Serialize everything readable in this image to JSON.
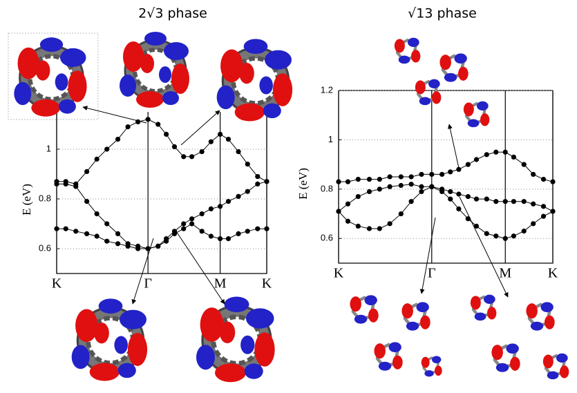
{
  "chart_data": [
    {
      "type": "line",
      "title": "2√3 phase",
      "ylabel": "E (eV)",
      "grid": true,
      "markers": true,
      "x": [
        0,
        0.1,
        0.21,
        0.33,
        0.44,
        0.55,
        0.67,
        0.78,
        0.89,
        1,
        1.11,
        1.2,
        1.29,
        1.39,
        1.48,
        1.59,
        1.69,
        1.79,
        1.88,
        1.99,
        2.09,
        2.2,
        2.3
      ],
      "xlim": [
        0,
        2.3
      ],
      "xticks": [
        {
          "value": 0,
          "label": "K"
        },
        {
          "value": 1,
          "label": "Γ"
        },
        {
          "value": 1.79,
          "label": "M"
        },
        {
          "value": 2.3,
          "label": "K"
        }
      ],
      "ylim": [
        0.5,
        1.15
      ],
      "yticks": [
        0.6,
        0.8,
        1
      ],
      "series": [
        {
          "color": "#000000",
          "values": [
            0.87,
            0.87,
            0.86,
            0.91,
            0.96,
            1.0,
            1.04,
            1.09,
            1.11,
            1.12,
            1.1,
            1.06,
            1.01,
            0.97,
            0.97,
            0.99,
            1.03,
            1.06,
            1.04,
            0.99,
            0.94,
            0.89,
            0.87
          ]
        },
        {
          "color": "#000000",
          "values": [
            0.86,
            0.86,
            0.85,
            0.79,
            0.74,
            0.7,
            0.66,
            0.62,
            0.61,
            0.6,
            0.61,
            0.64,
            0.67,
            0.7,
            0.72,
            0.74,
            0.76,
            0.77,
            0.79,
            0.81,
            0.83,
            0.86,
            0.87
          ]
        },
        {
          "color": "#000000",
          "values": [
            0.68,
            0.68,
            0.67,
            0.66,
            0.65,
            0.63,
            0.62,
            0.61,
            0.6,
            0.6,
            0.61,
            0.63,
            0.66,
            0.68,
            0.7,
            0.67,
            0.65,
            0.64,
            0.64,
            0.66,
            0.67,
            0.68,
            0.68
          ]
        }
      ]
    },
    {
      "type": "line",
      "title": "√13 phase",
      "ylabel": "E (eV)",
      "grid": true,
      "markers": true,
      "x": [
        0,
        0.1,
        0.21,
        0.33,
        0.44,
        0.55,
        0.67,
        0.78,
        0.89,
        1,
        1.11,
        1.2,
        1.29,
        1.39,
        1.48,
        1.59,
        1.69,
        1.79,
        1.88,
        1.99,
        2.09,
        2.2,
        2.3
      ],
      "xlim": [
        0,
        2.3
      ],
      "xticks": [
        {
          "value": 0,
          "label": "K"
        },
        {
          "value": 1,
          "label": "Γ"
        },
        {
          "value": 1.79,
          "label": "M"
        },
        {
          "value": 2.3,
          "label": "K"
        }
      ],
      "ylim": [
        0.5,
        1.2
      ],
      "yticks": [
        0.6,
        0.8,
        1,
        1.2
      ],
      "series": [
        {
          "color": "#000000",
          "values": [
            0.83,
            0.83,
            0.84,
            0.84,
            0.84,
            0.85,
            0.85,
            0.85,
            0.86,
            0.86,
            0.86,
            0.87,
            0.88,
            0.9,
            0.92,
            0.94,
            0.95,
            0.95,
            0.93,
            0.9,
            0.86,
            0.84,
            0.83
          ]
        },
        {
          "color": "#000000",
          "values": [
            0.71,
            0.74,
            0.77,
            0.79,
            0.8,
            0.81,
            0.815,
            0.82,
            0.81,
            0.81,
            0.8,
            0.79,
            0.78,
            0.77,
            0.76,
            0.76,
            0.75,
            0.75,
            0.75,
            0.75,
            0.74,
            0.73,
            0.71
          ]
        },
        {
          "color": "#000000",
          "values": [
            0.71,
            0.67,
            0.65,
            0.64,
            0.64,
            0.66,
            0.7,
            0.75,
            0.79,
            0.81,
            0.79,
            0.76,
            0.72,
            0.68,
            0.65,
            0.62,
            0.61,
            0.6,
            0.61,
            0.63,
            0.66,
            0.69,
            0.71
          ]
        }
      ]
    }
  ]
}
